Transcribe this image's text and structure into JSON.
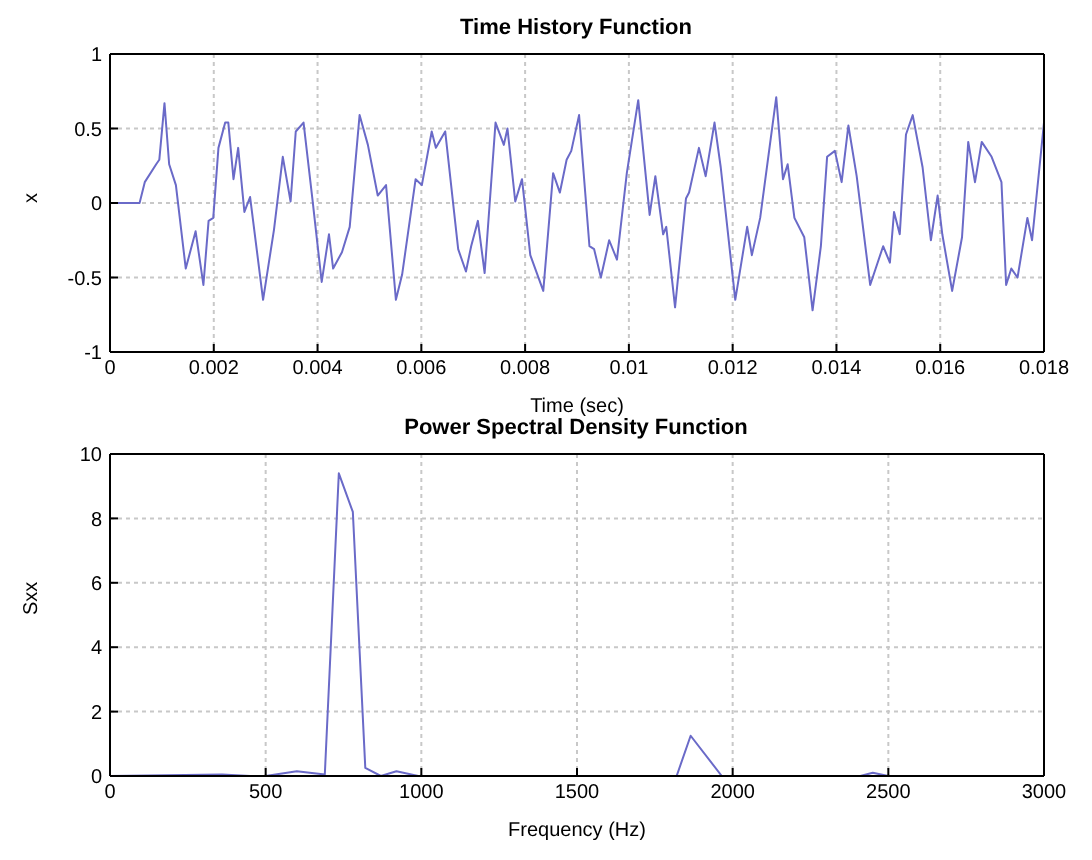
{
  "chart_data": [
    {
      "type": "line",
      "title": "Time History Function",
      "xlabel": "Time (sec)",
      "ylabel": "x",
      "xlim": [
        0,
        0.018
      ],
      "xticks": [
        0,
        0.002,
        0.004,
        0.006,
        0.008,
        0.01,
        0.012,
        0.014,
        0.016,
        0.018
      ],
      "ylim": [
        -1,
        1
      ],
      "yticks": [
        -1,
        -0.5,
        0,
        0.5,
        1
      ],
      "grid": true,
      "marker": "none",
      "line_style": "solid",
      "series": [
        {
          "color": "#6a6ac8",
          "x": [
            0,
            0.00057,
            0.00067,
            0.00089,
            0.00095,
            0.00105,
            0.00114,
            0.00127,
            0.00146,
            0.00165,
            0.0018,
            0.0019,
            0.00199,
            0.00209,
            0.00222,
            0.00228,
            0.00238,
            0.00247,
            0.00259,
            0.0027,
            0.00295,
            0.00316,
            0.00333,
            0.00348,
            0.00358,
            0.00373,
            0.0039,
            0.00408,
            0.00422,
            0.0043,
            0.00447,
            0.00462,
            0.00481,
            0.00497,
            0.00516,
            0.00532,
            0.00551,
            0.00563,
            0.00589,
            0.00601,
            0.0062,
            0.00628,
            0.00646,
            0.00671,
            0.00686,
            0.00696,
            0.00709,
            0.00722,
            0.00743,
            0.00759,
            0.00766,
            0.00781,
            0.00794,
            0.0081,
            0.00835,
            0.00854,
            0.00867,
            0.0088,
            0.00889,
            0.00904,
            0.00924,
            0.00933,
            0.00946,
            0.00962,
            0.00977,
            0.00996,
            0.01018,
            0.0104,
            0.01051,
            0.01066,
            0.01072,
            0.01089,
            0.0111,
            0.01116,
            0.01135,
            0.01148,
            0.01165,
            0.01177,
            0.01205,
            0.01228,
            0.01237,
            0.01253,
            0.01284,
            0.01297,
            0.01306,
            0.01319,
            0.01338,
            0.01354,
            0.0137,
            0.01382,
            0.01397,
            0.0141,
            0.01423,
            0.01439,
            0.01465,
            0.0149,
            0.01503,
            0.01511,
            0.01522,
            0.01534,
            0.01547,
            0.01566,
            0.01582,
            0.01595,
            0.01604,
            0.01623,
            0.01642,
            0.01654,
            0.01667,
            0.0168,
            0.01699,
            0.01718,
            0.01727,
            0.01737,
            0.01749,
            0.01768,
            0.01777,
            0.018
          ],
          "values": [
            0,
            0,
            0.14,
            0.26,
            0.29,
            0.67,
            0.26,
            0.12,
            -0.44,
            -0.19,
            -0.55,
            -0.12,
            -0.1,
            0.37,
            0.54,
            0.54,
            0.16,
            0.37,
            -0.06,
            0.04,
            -0.65,
            -0.18,
            0.31,
            0.01,
            0.48,
            0.54,
            0.03,
            -0.53,
            -0.21,
            -0.44,
            -0.33,
            -0.16,
            0.59,
            0.39,
            0.05,
            0.12,
            -0.65,
            -0.48,
            0.16,
            0.12,
            0.48,
            0.37,
            0.48,
            -0.31,
            -0.46,
            -0.29,
            -0.12,
            -0.47,
            0.54,
            0.39,
            0.5,
            0.01,
            0.16,
            -0.35,
            -0.59,
            0.2,
            0.07,
            0.29,
            0.35,
            0.59,
            -0.29,
            -0.31,
            -0.5,
            -0.25,
            -0.38,
            0.2,
            0.69,
            -0.08,
            0.18,
            -0.21,
            -0.16,
            -0.7,
            0.03,
            0.07,
            0.37,
            0.18,
            0.54,
            0.24,
            -0.65,
            -0.16,
            -0.35,
            -0.1,
            0.71,
            0.16,
            0.26,
            -0.1,
            -0.23,
            -0.72,
            -0.29,
            0.31,
            0.35,
            0.14,
            0.52,
            0.18,
            -0.55,
            -0.29,
            -0.4,
            -0.06,
            -0.21,
            0.46,
            0.59,
            0.24,
            -0.25,
            0.05,
            -0.21,
            -0.59,
            -0.23,
            0.41,
            0.14,
            0.41,
            0.31,
            0.14,
            -0.55,
            -0.44,
            -0.5,
            -0.1,
            -0.25,
            0.54
          ]
        }
      ]
    },
    {
      "type": "line",
      "title": "Power Spectral Density Function",
      "xlabel": "Frequency (Hz)",
      "ylabel": "Sxx",
      "xlim": [
        0,
        3000
      ],
      "xticks": [
        0,
        500,
        1000,
        1500,
        2000,
        2500,
        3000
      ],
      "ylim": [
        0,
        10
      ],
      "yticks": [
        0,
        2,
        4,
        6,
        8,
        10
      ],
      "grid": true,
      "marker": "none",
      "line_style": "solid",
      "series": [
        {
          "color": "#6a6ac8",
          "x": [
            0,
            360,
            450,
            500,
            600,
            690,
            735,
            780,
            820,
            870,
            920,
            990,
            1820,
            1865,
            1965,
            2410,
            2450,
            2500,
            3000
          ],
          "values": [
            0,
            0.05,
            0,
            0,
            0.15,
            0.05,
            9.4,
            8.2,
            0.25,
            0,
            0.15,
            0,
            0,
            1.25,
            0,
            0,
            0.1,
            0,
            0
          ]
        }
      ]
    }
  ]
}
